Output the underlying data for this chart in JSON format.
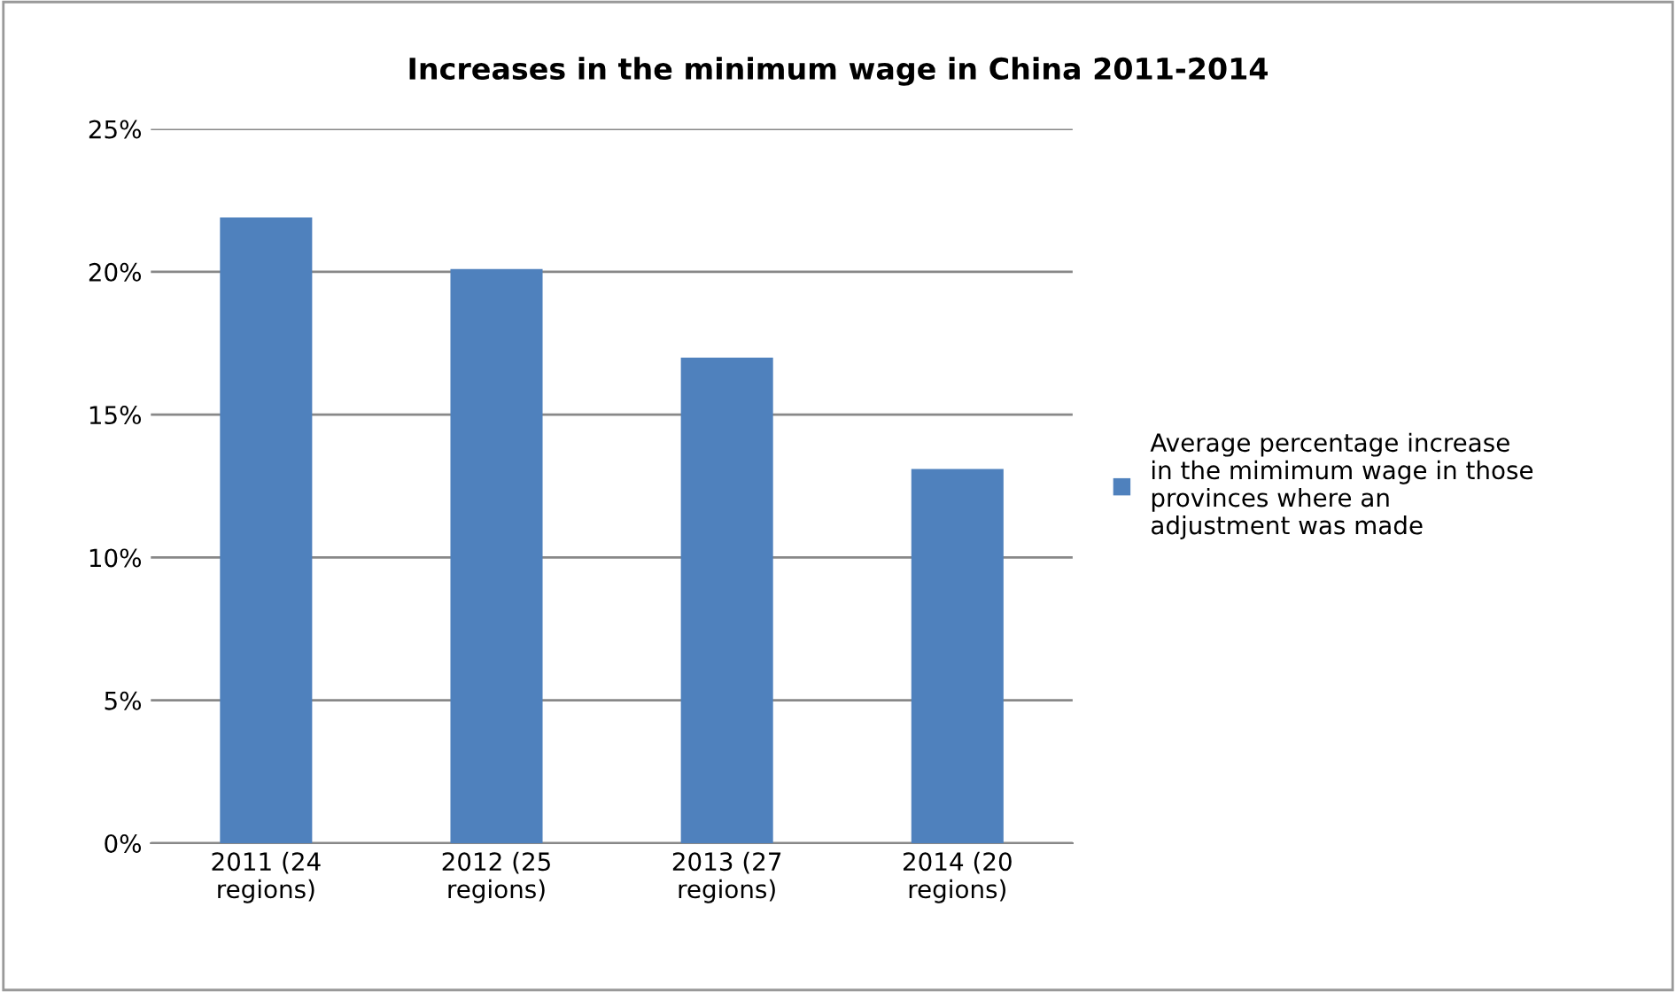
{
  "chart_data": {
    "type": "bar",
    "title": "Increases in the minimum wage in China 2011-2014",
    "categories": [
      "2011 (24 regions)",
      "2012 (25 regions)",
      "2013 (27 regions)",
      "2014 (20 regions)"
    ],
    "series": [
      {
        "name": "Average percentage increase in the mimimum wage in those provinces where an adjustment was made",
        "color": "#4f81bd",
        "values": [
          21.9,
          20.1,
          17.0,
          13.1
        ]
      }
    ],
    "ylim": [
      0,
      25
    ],
    "yticks": [
      {
        "value": 0,
        "label": "0%"
      },
      {
        "value": 5,
        "label": "5%"
      },
      {
        "value": 10,
        "label": "10%"
      },
      {
        "value": 15,
        "label": "15%"
      },
      {
        "value": 20,
        "label": "20%"
      },
      {
        "value": 25,
        "label": "25%"
      }
    ],
    "grid": "y",
    "legend": "right"
  }
}
